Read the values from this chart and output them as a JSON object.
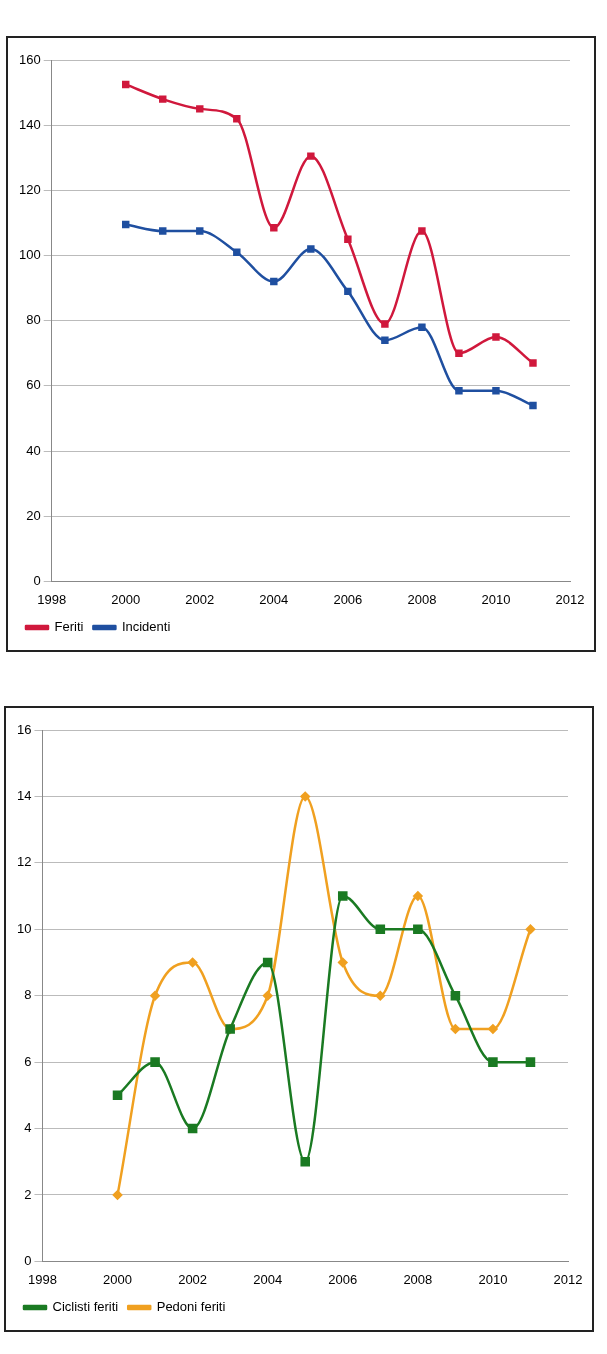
{
  "chart_data": [
    {
      "type": "line",
      "x": [
        2000,
        2001,
        2002,
        2003,
        2004,
        2005,
        2006,
        2007,
        2008,
        2009,
        2010,
        2011
      ],
      "xlim": [
        1998,
        2012
      ],
      "xticks": [
        1998,
        2000,
        2002,
        2004,
        2006,
        2008,
        2010,
        2012
      ],
      "ylim": [
        0,
        160
      ],
      "yticks": [
        0,
        20,
        40,
        60,
        80,
        100,
        120,
        140,
        160
      ],
      "grid": "y",
      "legend": "bottom",
      "marker": "square",
      "line_style": "solid",
      "series": [
        {
          "name": "Incidenti",
          "color": "#1f4fa0",
          "values": [
            109.5,
            107.5,
            107.5,
            101,
            92,
            102,
            89,
            74,
            78,
            58.5,
            58.5,
            54
          ]
        },
        {
          "name": "Feriti",
          "color": "#d0183c",
          "values": [
            152.5,
            148,
            145,
            142,
            108.5,
            130.5,
            105,
            79,
            107.5,
            70,
            75,
            67
          ]
        }
      ]
    },
    {
      "type": "line",
      "x": [
        2000,
        2001,
        2002,
        2003,
        2004,
        2005,
        2006,
        2007,
        2008,
        2009,
        2010,
        2011
      ],
      "xlim": [
        1998,
        2012
      ],
      "xticks": [
        1998,
        2000,
        2002,
        2004,
        2006,
        2008,
        2010,
        2012
      ],
      "ylim": [
        0,
        16
      ],
      "yticks": [
        0,
        2,
        4,
        6,
        8,
        10,
        12,
        14,
        16
      ],
      "grid": "y",
      "legend": "bottom",
      "line_style": "solid",
      "series": [
        {
          "name": "Pedoni feriti",
          "color": "#f0a020",
          "marker": "diamond",
          "values": [
            2,
            8,
            9,
            7,
            8,
            14,
            9,
            8,
            11,
            7,
            7,
            10
          ]
        },
        {
          "name": "Ciclisti feriti",
          "color": "#1a7a22",
          "marker": "square",
          "values": [
            5,
            6,
            4,
            7,
            9,
            3,
            11,
            10,
            10,
            8,
            6,
            6
          ]
        }
      ]
    }
  ]
}
